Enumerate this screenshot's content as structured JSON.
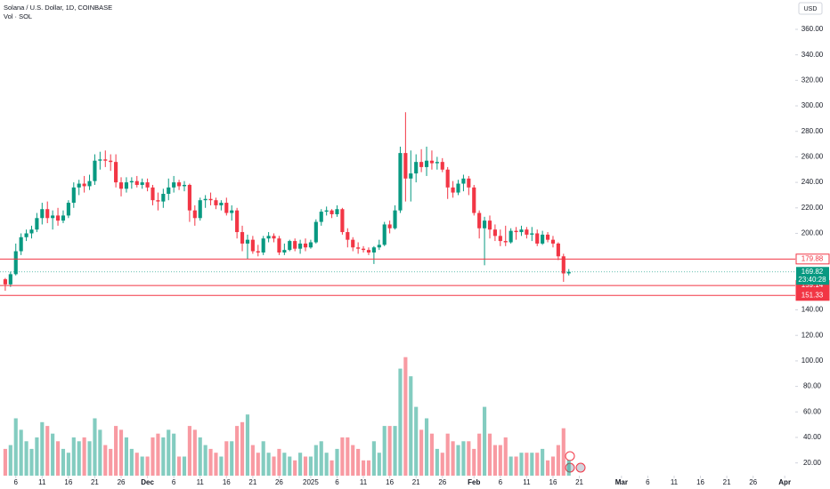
{
  "chart_data": {
    "type": "candlestick",
    "title": "Solana / U.S. Dollar, 1D, COINBASE",
    "subtitle": "Vol · SOL",
    "currency": "USD",
    "countdown": "23:40:28",
    "up_color": "#089981",
    "down_color": "#f23645",
    "level_color": "#f23645",
    "grid": false,
    "x": [
      "2024-11-04",
      "2024-11-05",
      "2024-11-06",
      "2024-11-07",
      "2024-11-08",
      "2024-11-09",
      "2024-11-10",
      "2024-11-11",
      "2024-11-12",
      "2024-11-13",
      "2024-11-14",
      "2024-11-15",
      "2024-11-16",
      "2024-11-17",
      "2024-11-18",
      "2024-11-19",
      "2024-11-20",
      "2024-11-21",
      "2024-11-22",
      "2024-11-23",
      "2024-11-24",
      "2024-11-25",
      "2024-11-26",
      "2024-11-27",
      "2024-11-28",
      "2024-11-29",
      "2024-11-30",
      "2024-12-01",
      "2024-12-02",
      "2024-12-03",
      "2024-12-04",
      "2024-12-05",
      "2024-12-06",
      "2024-12-07",
      "2024-12-08",
      "2024-12-09",
      "2024-12-10",
      "2024-12-11",
      "2024-12-12",
      "2024-12-13",
      "2024-12-14",
      "2024-12-15",
      "2024-12-16",
      "2024-12-17",
      "2024-12-18",
      "2024-12-19",
      "2024-12-20",
      "2024-12-21",
      "2024-12-22",
      "2024-12-23",
      "2024-12-24",
      "2024-12-25",
      "2024-12-26",
      "2024-12-27",
      "2024-12-28",
      "2024-12-29",
      "2024-12-30",
      "2024-12-31",
      "2025-01-01",
      "2025-01-02",
      "2025-01-03",
      "2025-01-04",
      "2025-01-05",
      "2025-01-06",
      "2025-01-07",
      "2025-01-08",
      "2025-01-09",
      "2025-01-10",
      "2025-01-11",
      "2025-01-12",
      "2025-01-13",
      "2025-01-14",
      "2025-01-15",
      "2025-01-16",
      "2025-01-17",
      "2025-01-18",
      "2025-01-19",
      "2025-01-20",
      "2025-01-21",
      "2025-01-22",
      "2025-01-23",
      "2025-01-24",
      "2025-01-25",
      "2025-01-26",
      "2025-01-27",
      "2025-01-28",
      "2025-01-29",
      "2025-01-30",
      "2025-01-31",
      "2025-02-01",
      "2025-02-02",
      "2025-02-03",
      "2025-02-04",
      "2025-02-05",
      "2025-02-06",
      "2025-02-07",
      "2025-02-08",
      "2025-02-09",
      "2025-02-10",
      "2025-02-11",
      "2025-02-12",
      "2025-02-13",
      "2025-02-14",
      "2025-02-15",
      "2025-02-16",
      "2025-02-17",
      "2025-02-18",
      "2025-02-19"
    ],
    "open": [
      164,
      160,
      168,
      186,
      197,
      200,
      203,
      212,
      219,
      212,
      214,
      210,
      214,
      224,
      236,
      239,
      237,
      241,
      257,
      258,
      257,
      256,
      240,
      235,
      240,
      241,
      238,
      240,
      236,
      226,
      225,
      231,
      236,
      240,
      237,
      238,
      218,
      212,
      226,
      227,
      226,
      222,
      224,
      216,
      218,
      201,
      192,
      195,
      186,
      185,
      196,
      198,
      196,
      185,
      187,
      194,
      188,
      192,
      189,
      193,
      209,
      217,
      218,
      215,
      219,
      201,
      195,
      189,
      188,
      187,
      185,
      189,
      191,
      207,
      204,
      218,
      263,
      243,
      247,
      256,
      252,
      257,
      255,
      256,
      250,
      236,
      232,
      239,
      243,
      236,
      216,
      204,
      210,
      203,
      198,
      194,
      193,
      202,
      201,
      203,
      199,
      200,
      192,
      199,
      195,
      192,
      182,
      168.6
    ],
    "high": [
      165,
      170,
      192,
      200,
      203,
      206,
      216,
      224,
      225,
      218,
      220,
      218,
      226,
      240,
      242,
      245,
      246,
      262,
      264,
      265,
      262,
      262,
      244,
      244,
      244,
      245,
      243,
      243,
      238,
      232,
      235,
      243,
      245,
      242,
      241,
      239,
      222,
      228,
      230,
      232,
      228,
      226,
      228,
      222,
      220,
      206,
      199,
      198,
      191,
      198,
      201,
      200,
      198,
      192,
      195,
      196,
      195,
      196,
      195,
      211,
      219,
      221,
      219,
      222,
      220,
      204,
      197,
      193,
      190,
      189,
      190,
      195,
      209,
      210,
      222,
      268,
      295,
      265,
      262,
      266,
      268,
      265,
      260,
      259,
      252,
      241,
      242,
      246,
      245,
      238,
      218,
      213,
      214,
      207,
      203,
      206,
      204,
      205,
      206,
      205,
      205,
      203,
      202,
      201,
      198,
      193,
      184,
      172
    ],
    "low": [
      155,
      158,
      167,
      183,
      194,
      196,
      201,
      207,
      208,
      203,
      206,
      208,
      212,
      220,
      230,
      232,
      234,
      238,
      250,
      252,
      249,
      236,
      229,
      232,
      235,
      236,
      235,
      233,
      222,
      218,
      220,
      226,
      232,
      234,
      233,
      209,
      206,
      210,
      220,
      222,
      219,
      218,
      214,
      210,
      196,
      186,
      180,
      184,
      182,
      183,
      193,
      193,
      183,
      183,
      186,
      186,
      184,
      186,
      188,
      192,
      206,
      214,
      212,
      213,
      199,
      189,
      186,
      184,
      185,
      183,
      176,
      187,
      190,
      200,
      203,
      216,
      225,
      225,
      240,
      248,
      245,
      250,
      250,
      248,
      227,
      228,
      230,
      233,
      230,
      214,
      196,
      175,
      196,
      194,
      190,
      190,
      192,
      195,
      198,
      196,
      194,
      190,
      191,
      193,
      189,
      179,
      162,
      167
    ],
    "close": [
      160,
      168,
      186,
      197,
      200,
      203,
      212,
      219,
      212,
      214,
      210,
      214,
      224,
      236,
      239,
      237,
      241,
      257,
      258,
      257,
      256,
      240,
      235,
      240,
      241,
      238,
      240,
      236,
      226,
      225,
      231,
      236,
      240,
      237,
      238,
      218,
      212,
      226,
      227,
      226,
      222,
      224,
      216,
      218,
      201,
      192,
      195,
      186,
      185,
      196,
      198,
      196,
      185,
      187,
      194,
      188,
      192,
      189,
      193,
      209,
      217,
      218,
      215,
      219,
      201,
      195,
      189,
      188,
      187,
      185,
      189,
      191,
      207,
      204,
      218,
      263,
      243,
      247,
      256,
      252,
      257,
      255,
      256,
      250,
      236,
      232,
      239,
      243,
      236,
      216,
      204,
      210,
      203,
      198,
      194,
      193,
      202,
      201,
      203,
      199,
      200,
      192,
      199,
      195,
      192,
      182,
      168.6,
      169.82
    ],
    "volume": [
      3.5,
      4,
      7.5,
      6,
      4.5,
      3.5,
      5,
      7,
      6.5,
      5.5,
      4.5,
      3.5,
      3,
      5,
      4.5,
      5,
      4.5,
      7.5,
      6,
      4,
      3.5,
      6.5,
      6,
      5,
      3.5,
      3,
      2.5,
      2.5,
      5,
      5.5,
      5,
      6,
      5.5,
      2.5,
      2.5,
      6.5,
      6,
      5,
      4,
      3.5,
      3,
      2.5,
      4.5,
      4.5,
      6.5,
      7,
      8,
      4,
      3,
      4.5,
      3,
      2.5,
      3.5,
      3,
      2.5,
      2,
      3,
      2.5,
      2.5,
      4,
      4.5,
      3,
      2,
      3.5,
      5,
      5,
      4,
      3.5,
      2,
      2,
      4.5,
      3,
      6.5,
      6.5,
      6.5,
      14,
      15.5,
      13,
      9,
      6,
      7.5,
      5.5,
      3.5,
      3,
      5.5,
      4.5,
      4,
      4.5,
      4.5,
      3.5,
      5.5,
      9,
      5.5,
      4,
      4,
      5,
      2.5,
      2.5,
      3,
      3,
      3,
      3,
      3.5,
      2,
      2.5,
      4,
      6.2,
      2
    ],
    "levels": [
      179.88,
      159.14,
      151.33
    ],
    "level_label_styles": [
      "outline",
      "filled",
      "filled"
    ],
    "xlim": [
      "2024-11-03",
      "2025-04-03"
    ],
    "ylim": [
      10,
      383
    ],
    "yticks": [
      {
        "value": 20,
        "label": "20.00"
      },
      {
        "value": 40,
        "label": "40.00"
      },
      {
        "value": 60,
        "label": "60.00"
      },
      {
        "value": 80,
        "label": "80.00"
      },
      {
        "value": 100,
        "label": "100.00"
      },
      {
        "value": 120,
        "label": "120.00"
      },
      {
        "value": 140,
        "label": "140.00"
      },
      {
        "value": 160,
        "label": "160.00"
      },
      {
        "value": 180,
        "label": "180.00"
      },
      {
        "value": 200,
        "label": "200.00"
      },
      {
        "value": 220,
        "label": "220.00"
      },
      {
        "value": 240,
        "label": "240.00"
      },
      {
        "value": 260,
        "label": "260.00"
      },
      {
        "value": 280,
        "label": "280.00"
      },
      {
        "value": 300,
        "label": "300.00"
      },
      {
        "value": 320,
        "label": "320.00"
      },
      {
        "value": 340,
        "label": "340.00"
      },
      {
        "value": 360,
        "label": "360.00"
      }
    ],
    "xticks": [
      {
        "value": "2024-11-06",
        "label": "6"
      },
      {
        "value": "2024-11-11",
        "label": "11"
      },
      {
        "value": "2024-11-16",
        "label": "16"
      },
      {
        "value": "2024-11-21",
        "label": "21"
      },
      {
        "value": "2024-11-26",
        "label": "26"
      },
      {
        "value": "2024-12-01",
        "label": "Dec"
      },
      {
        "value": "2024-12-06",
        "label": "6"
      },
      {
        "value": "2024-12-11",
        "label": "11"
      },
      {
        "value": "2024-12-16",
        "label": "16"
      },
      {
        "value": "2024-12-21",
        "label": "21"
      },
      {
        "value": "2024-12-26",
        "label": "26"
      },
      {
        "value": "2025-01-01",
        "label": "2025"
      },
      {
        "value": "2025-01-06",
        "label": "6"
      },
      {
        "value": "2025-01-11",
        "label": "11"
      },
      {
        "value": "2025-01-16",
        "label": "16"
      },
      {
        "value": "2025-01-21",
        "label": "21"
      },
      {
        "value": "2025-01-26",
        "label": "26"
      },
      {
        "value": "2025-02-01",
        "label": "Feb"
      },
      {
        "value": "2025-02-06",
        "label": "6"
      },
      {
        "value": "2025-02-11",
        "label": "11"
      },
      {
        "value": "2025-02-16",
        "label": "16"
      },
      {
        "value": "2025-02-21",
        "label": "21"
      },
      {
        "value": "2025-03-01",
        "label": "Mar"
      },
      {
        "value": "2025-03-06",
        "label": "6"
      },
      {
        "value": "2025-03-11",
        "label": "11"
      },
      {
        "value": "2025-03-16",
        "label": "16"
      },
      {
        "value": "2025-03-21",
        "label": "21"
      },
      {
        "value": "2025-03-26",
        "label": "26"
      },
      {
        "value": "2025-04-01",
        "label": "Apr"
      }
    ]
  }
}
